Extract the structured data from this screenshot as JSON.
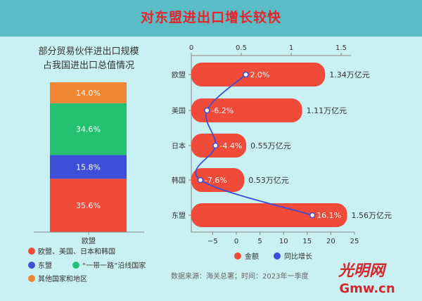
{
  "header": {
    "title": "对东盟进出口增长较快"
  },
  "chart_data": [
    {
      "type": "bar",
      "stacked": true,
      "title": "部分贸易伙伴进出口规模\n占我国进出口总值情况",
      "categories": [
        "欧盟"
      ],
      "series": [
        {
          "name": "欧盟、美国、日本和韩国",
          "values": [
            35.6
          ],
          "label": "35.6%",
          "color": "#f04a38"
        },
        {
          "name": "东盟",
          "values": [
            15.8
          ],
          "label": "15.8%",
          "color": "#3d4fd6"
        },
        {
          "name": "“一带一路”沿线国家",
          "values": [
            34.6
          ],
          "label": "34.6%",
          "color": "#25c072"
        },
        {
          "name": "其他国家和地区",
          "values": [
            14.0
          ],
          "label": "14.0%",
          "color": "#f08533"
        }
      ],
      "ylim": [
        0,
        100
      ],
      "legend": "bottom"
    },
    {
      "type": "bar",
      "orientation": "horizontal",
      "categories": [
        "欧盟",
        "美国",
        "日本",
        "韩国",
        "东盟"
      ],
      "series": [
        {
          "name": "金额",
          "axis": "top",
          "values": [
            1.34,
            1.11,
            0.55,
            0.53,
            1.56
          ],
          "labels": [
            "1.34万亿元",
            "1.11万亿元",
            "0.55万亿元",
            "0.53万亿元",
            "1.56万亿元"
          ],
          "color": "#f04a38"
        },
        {
          "name": "同比增长",
          "type": "line",
          "axis": "bottom",
          "values": [
            2.0,
            -6.2,
            -4.4,
            -7.6,
            16.1
          ],
          "labels": [
            "2.0%",
            "-6.2%",
            "-4.4%",
            "-7.6%",
            "16.1%"
          ],
          "color": "#3d4fd6"
        }
      ],
      "top_axis": {
        "min": 0,
        "max": 1.6,
        "ticks": [
          0,
          0.5,
          1,
          1.5
        ],
        "tick_labels": [
          "0",
          "0.5",
          "1",
          "1.5"
        ]
      },
      "bottom_axis": {
        "min": -10,
        "max": 25,
        "ticks": [
          -5,
          0,
          5,
          10,
          15,
          20,
          25
        ],
        "tick_labels": [
          "−5",
          "0",
          "5",
          "10",
          "15",
          "20",
          "25"
        ]
      },
      "legend": "bottom"
    }
  ],
  "footer": {
    "source": "数据来源：海关总署；时间：2023年一季度",
    "logo_text": "光明网",
    "logo_domain": "Gmw.cn"
  }
}
